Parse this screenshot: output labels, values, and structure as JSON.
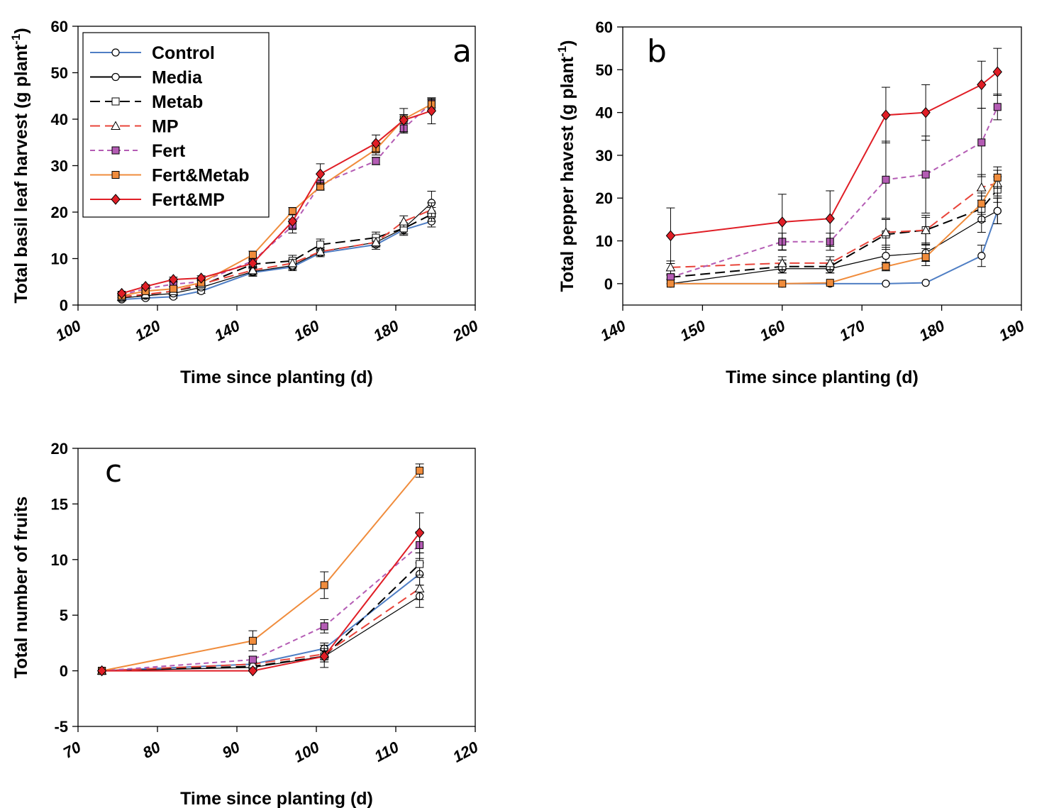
{
  "series_styles": {
    "Control": {
      "color": "#4f7ec4",
      "dash": "",
      "marker": "circle",
      "fill": "#ffffff"
    },
    "Media": {
      "color": "#000000",
      "dash": "",
      "marker": "circle",
      "fill": "#ffffff"
    },
    "Metab": {
      "color": "#000000",
      "dash": "14,7",
      "marker": "square",
      "fill": "#ffffff"
    },
    "MP": {
      "color": "#e8443a",
      "dash": "14,7",
      "marker": "triangle",
      "fill": "#ffffff"
    },
    "Fert": {
      "color": "#b45cb4",
      "dash": "7,5",
      "marker": "square",
      "fill": "#b45cb4"
    },
    "Fert&Metab": {
      "color": "#f08c3c",
      "dash": "",
      "marker": "square",
      "fill": "#f08c3c"
    },
    "Fert&MP": {
      "color": "#e01e26",
      "dash": "",
      "marker": "diamond",
      "fill": "#e01e26"
    }
  },
  "legend": {
    "entries": [
      "Control",
      "Media",
      "Metab",
      "MP",
      "Fert",
      "Fert&Metab",
      "Fert&MP"
    ]
  },
  "chart_data": [
    {
      "type": "line",
      "panel": "a",
      "ylabel_main": "Total basil leaf harvest (g plant",
      "ylabel_sup": "-1",
      "ylabel_close": ")",
      "xlabel": "Time since planting (d)",
      "xlim": [
        100,
        200
      ],
      "ylim": [
        0,
        60
      ],
      "xticks": [
        100,
        120,
        140,
        160,
        180,
        200
      ],
      "yticks": [
        0,
        10,
        20,
        30,
        40,
        50,
        60
      ],
      "legend_position": "top-left",
      "x": [
        111,
        117,
        124,
        131,
        144,
        154,
        161,
        175,
        182,
        189
      ],
      "series": [
        {
          "name": "Control",
          "values": [
            1.2,
            1.5,
            1.8,
            3.0,
            7.0,
            8.2,
            11.2,
            13.0,
            16.2,
            18.0
          ],
          "err": [
            0.3,
            0.3,
            0.3,
            0.5,
            0.8,
            0.8,
            0.8,
            1.0,
            1.2,
            1.2
          ]
        },
        {
          "name": "Media",
          "values": [
            1.5,
            2.0,
            2.5,
            3.8,
            7.2,
            8.5,
            11.5,
            13.5,
            16.5,
            22.0
          ],
          "err": [
            0.3,
            0.3,
            0.4,
            0.5,
            0.8,
            0.8,
            0.8,
            1.0,
            1.2,
            2.5
          ]
        },
        {
          "name": "Metab",
          "values": [
            1.8,
            2.2,
            3.0,
            4.2,
            8.8,
            9.5,
            13.0,
            14.5,
            16.5,
            19.5
          ],
          "err": [
            0.3,
            0.3,
            0.4,
            0.5,
            0.8,
            1.2,
            1.2,
            1.2,
            1.2,
            1.5
          ]
        },
        {
          "name": "MP",
          "values": [
            1.8,
            2.3,
            3.0,
            4.5,
            7.5,
            9.0,
            11.5,
            13.5,
            18.0,
            20.5
          ],
          "err": [
            0.3,
            0.3,
            0.4,
            0.5,
            0.8,
            0.8,
            0.8,
            1.0,
            1.2,
            1.5
          ]
        },
        {
          "name": "Fert",
          "values": [
            2.2,
            3.5,
            4.5,
            5.0,
            9.5,
            17.0,
            26.0,
            31.0,
            38.0,
            43.5
          ],
          "err": [
            0.4,
            0.4,
            0.5,
            0.5,
            0.8,
            1.5,
            1.0,
            0.8,
            1.0,
            1.0
          ]
        },
        {
          "name": "Fert&Metab",
          "values": [
            2.0,
            3.0,
            3.5,
            4.8,
            10.8,
            20.2,
            25.5,
            33.5,
            40.0,
            43.2
          ],
          "err": [
            0.3,
            0.4,
            0.4,
            0.5,
            0.8,
            0.8,
            0.8,
            1.2,
            1.0,
            1.0
          ]
        },
        {
          "name": "Fert&MP",
          "values": [
            2.5,
            4.0,
            5.5,
            5.8,
            9.0,
            18.0,
            28.2,
            34.8,
            39.8,
            41.8
          ],
          "err": [
            0.4,
            0.4,
            0.5,
            0.5,
            0.8,
            1.5,
            2.2,
            1.8,
            2.5,
            2.8
          ]
        }
      ]
    },
    {
      "type": "line",
      "panel": "b",
      "ylabel_main": "Total pepper havest (g plant",
      "ylabel_sup": "-1",
      "ylabel_close": ")",
      "xlabel": "Time since planting (d)",
      "xlim": [
        140,
        190
      ],
      "ylim": [
        -5,
        60
      ],
      "xticks": [
        140,
        150,
        160,
        170,
        180,
        190
      ],
      "yticks": [
        0,
        10,
        20,
        30,
        40,
        50,
        60
      ],
      "x": [
        146,
        160,
        166,
        173,
        178,
        185,
        187
      ],
      "series": [
        {
          "name": "Control",
          "values": [
            0,
            0,
            0,
            0,
            0.2,
            6.5,
            17.0
          ],
          "err": [
            0,
            0,
            0,
            0,
            0,
            2.5,
            3.0
          ]
        },
        {
          "name": "Media",
          "values": [
            0,
            3.5,
            3.5,
            6.5,
            7.2,
            15.0,
            17.0
          ],
          "err": [
            0,
            1.0,
            1.0,
            2.0,
            2.0,
            3.0,
            3.0
          ]
        },
        {
          "name": "Metab",
          "values": [
            1.5,
            4.0,
            4.0,
            11.5,
            12.5,
            17.5,
            22.0
          ],
          "err": [
            0.5,
            1.5,
            1.5,
            3.5,
            3.5,
            3.0,
            3.0
          ]
        },
        {
          "name": "MP",
          "values": [
            3.8,
            4.8,
            4.8,
            12.0,
            12.5,
            22.5,
            23.5
          ],
          "err": [
            1.5,
            1.5,
            1.5,
            3.0,
            3.0,
            3.0,
            3.0
          ]
        },
        {
          "name": "Fert",
          "values": [
            1.5,
            9.8,
            9.8,
            24.3,
            25.5,
            33.0,
            41.3
          ],
          "err": [
            0.5,
            2.0,
            2.0,
            9.0,
            9.0,
            8.0,
            3.0
          ]
        },
        {
          "name": "Fert&Metab",
          "values": [
            0,
            0,
            0.2,
            4.0,
            6.2,
            18.7,
            24.8
          ],
          "err": [
            0,
            0,
            0,
            1.0,
            2.0,
            2.5,
            2.5
          ]
        },
        {
          "name": "Fert&MP",
          "values": [
            11.2,
            14.4,
            15.2,
            39.4,
            40.0,
            46.5,
            49.5
          ],
          "err": [
            6.5,
            6.5,
            6.5,
            6.5,
            6.5,
            5.5,
            5.5
          ]
        }
      ]
    },
    {
      "type": "line",
      "panel": "c",
      "ylabel_main": "Total number of fruits",
      "ylabel_sup": "",
      "ylabel_close": "",
      "xlabel": "Time since planting (d)",
      "xlim": [
        70,
        120
      ],
      "ylim": [
        -5,
        20
      ],
      "xticks": [
        70,
        80,
        90,
        100,
        110,
        120
      ],
      "yticks": [
        -5,
        0,
        5,
        10,
        15,
        20
      ],
      "x": [
        73,
        92,
        101,
        113
      ],
      "series": [
        {
          "name": "Control",
          "values": [
            0,
            0.6,
            2.0,
            8.7
          ],
          "err": [
            0,
            0.2,
            0.5,
            1.0
          ]
        },
        {
          "name": "Media",
          "values": [
            0,
            0.3,
            1.3,
            6.7
          ],
          "err": [
            0,
            0.2,
            0.5,
            1.0
          ]
        },
        {
          "name": "Metab",
          "values": [
            0,
            0.4,
            1.3,
            9.6
          ],
          "err": [
            0,
            0.2,
            0.5,
            1.0
          ]
        },
        {
          "name": "MP",
          "values": [
            0,
            0.6,
            1.5,
            7.4
          ],
          "err": [
            0,
            0.2,
            0.5,
            1.0
          ]
        },
        {
          "name": "Fert",
          "values": [
            0,
            1.0,
            4.0,
            11.3
          ],
          "err": [
            0,
            0.3,
            0.6,
            1.2
          ]
        },
        {
          "name": "Fert&Metab",
          "values": [
            0,
            2.7,
            7.7,
            18.0
          ],
          "err": [
            0,
            0.9,
            1.2,
            0.6
          ]
        },
        {
          "name": "Fert&MP",
          "values": [
            0,
            0,
            1.3,
            12.4
          ],
          "err": [
            0,
            0,
            1.0,
            1.8
          ]
        }
      ]
    }
  ]
}
